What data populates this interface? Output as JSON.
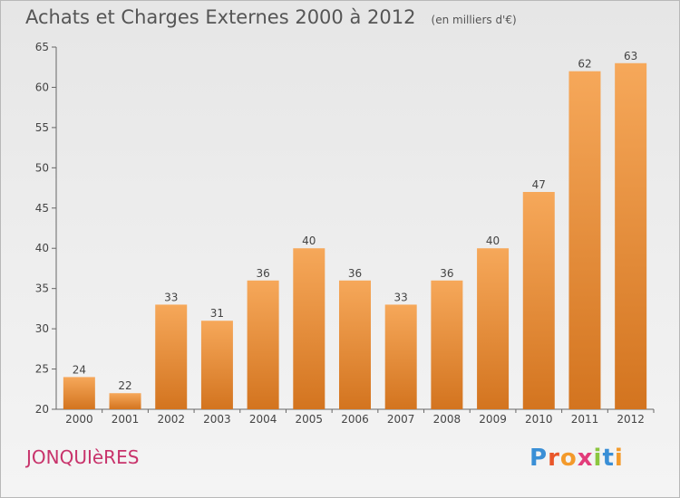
{
  "title": "Achats et Charges Externes 2000 à 2012",
  "unit": "(en milliers d'€)",
  "commune": "JONQUIèRES",
  "brand": {
    "letters": [
      "P",
      "r",
      "o",
      "x",
      "i",
      "t",
      "i"
    ],
    "colors": [
      "#3a8fd6",
      "#e9562a",
      "#f39a2b",
      "#e23c7a",
      "#8cc63f",
      "#3a8fd6",
      "#f39a2b"
    ]
  },
  "chart_data": {
    "type": "bar",
    "title": "Achats et Charges Externes 2000 à 2012",
    "subtitle": "(en milliers d'€)",
    "categories": [
      "2000",
      "2001",
      "2002",
      "2003",
      "2004",
      "2005",
      "2006",
      "2007",
      "2008",
      "2009",
      "2010",
      "2011",
      "2012"
    ],
    "values": [
      24,
      22,
      33,
      31,
      36,
      40,
      36,
      33,
      36,
      40,
      47,
      62,
      63
    ],
    "ylim": [
      20,
      65
    ],
    "yticks": [
      20,
      25,
      30,
      35,
      40,
      45,
      50,
      55,
      60,
      65
    ],
    "grid": false,
    "colors": {
      "bar_top": "#f6a85a",
      "bar_bottom": "#d3741f",
      "axis": "#666666"
    }
  }
}
